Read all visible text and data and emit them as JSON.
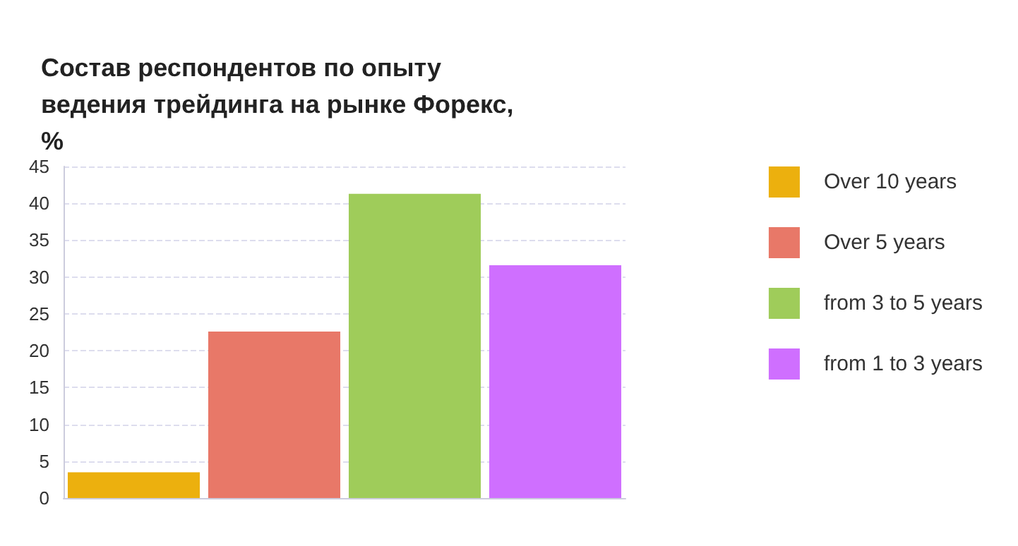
{
  "chart_data": {
    "type": "bar",
    "title": "Состав респондентов по опыту ведения трейдинга на рынке Форекс, %",
    "categories": [
      null,
      null,
      null,
      null
    ],
    "series": [
      {
        "name": "Over 10 years",
        "color": "#ecb00e",
        "values": [
          3.5,
          null,
          null,
          null
        ]
      },
      {
        "name": "Over 5 years",
        "color": "#e87868",
        "values": [
          null,
          22.6,
          null,
          null
        ]
      },
      {
        "name": "from 3 to 5 years",
        "color": "#9fcc5a",
        "values": [
          null,
          null,
          41.3,
          null
        ]
      },
      {
        "name": "from 1 to 3 years",
        "color": "#cf6fff",
        "values": [
          null,
          null,
          null,
          31.6
        ]
      }
    ],
    "ylim": [
      0,
      45
    ],
    "yticks": [
      0,
      5,
      10,
      15,
      20,
      25,
      30,
      35,
      40,
      45
    ],
    "grid": "y",
    "legend": "right"
  }
}
